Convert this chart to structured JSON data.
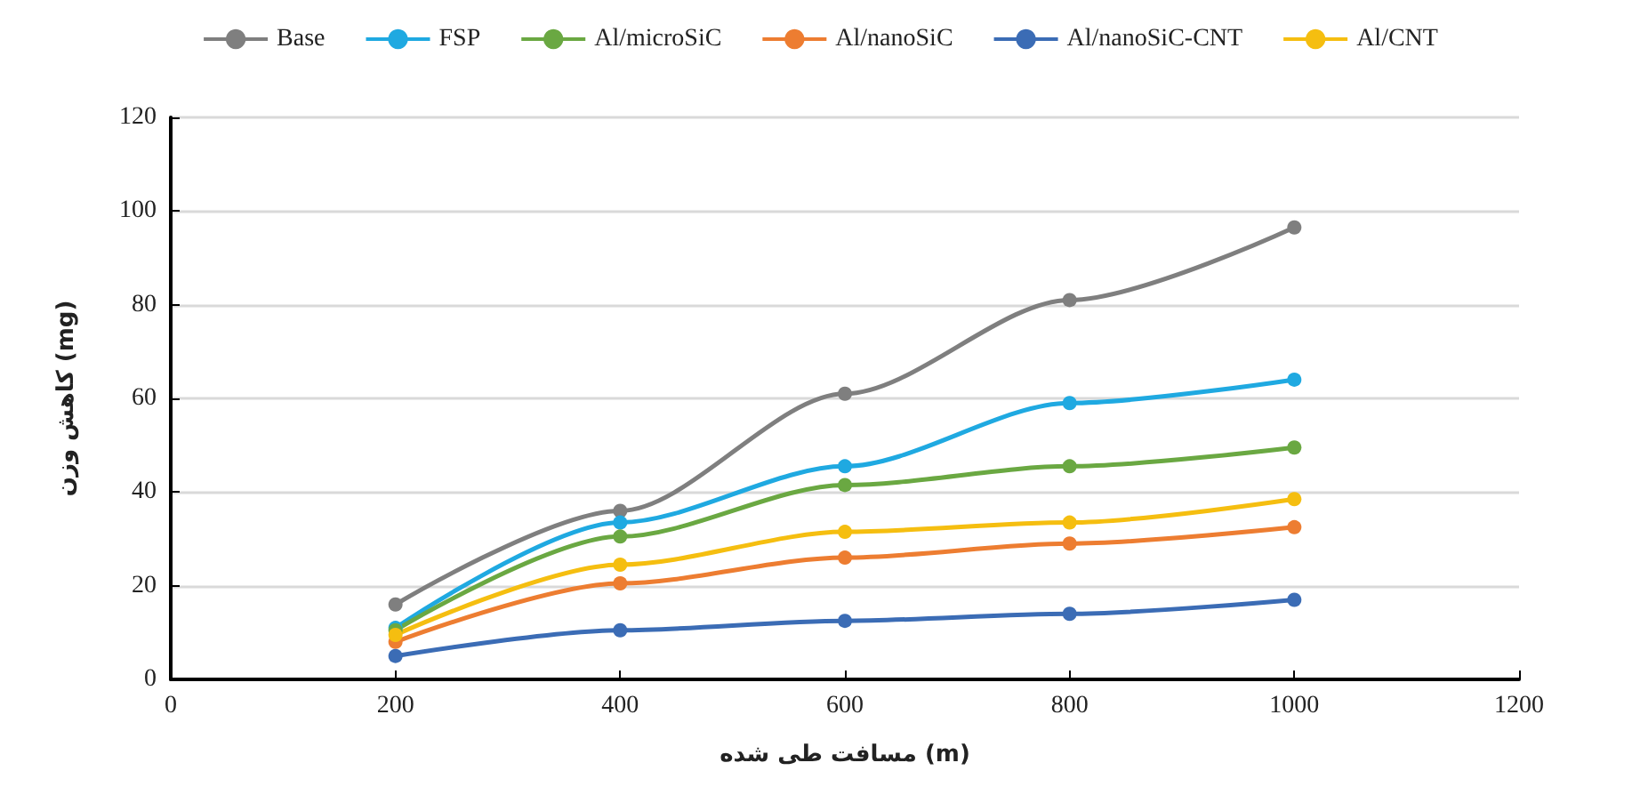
{
  "chart_data": {
    "type": "line",
    "xlabel": "مسافت طی شده (m)",
    "ylabel": "کاهش وزن (mg)",
    "x": [
      200,
      400,
      600,
      800,
      1000
    ],
    "series": [
      {
        "name": "Base",
        "color": "#7f7f7f",
        "values": [
          16,
          36,
          61,
          81,
          96.5
        ]
      },
      {
        "name": "FSP",
        "color": "#1fa9e1",
        "values": [
          11,
          33.5,
          45.5,
          59,
          64
        ]
      },
      {
        "name": "Al/microSiC",
        "color": "#6aa842",
        "values": [
          10.5,
          30.5,
          41.5,
          45.5,
          49.5
        ]
      },
      {
        "name": "Al/nanoSiC",
        "color": "#ed7d31",
        "values": [
          8,
          20.5,
          26,
          29,
          32.5
        ]
      },
      {
        "name": "Al/nanoSiC-CNT",
        "color": "#3b6cb5",
        "values": [
          5,
          10.5,
          12.5,
          14,
          17
        ]
      },
      {
        "name": "Al/CNT",
        "color": "#f5be10",
        "values": [
          9.5,
          24.5,
          31.5,
          33.5,
          38.5
        ]
      }
    ],
    "xlim": [
      0,
      1200
    ],
    "xticks": [
      0,
      200,
      400,
      600,
      800,
      1000,
      1200
    ],
    "ylim": [
      0,
      120
    ],
    "yticks": [
      0,
      20,
      40,
      60,
      80,
      100,
      120
    ],
    "grid": "y",
    "legend": "top",
    "marker": "circle",
    "line_style": "solid"
  }
}
